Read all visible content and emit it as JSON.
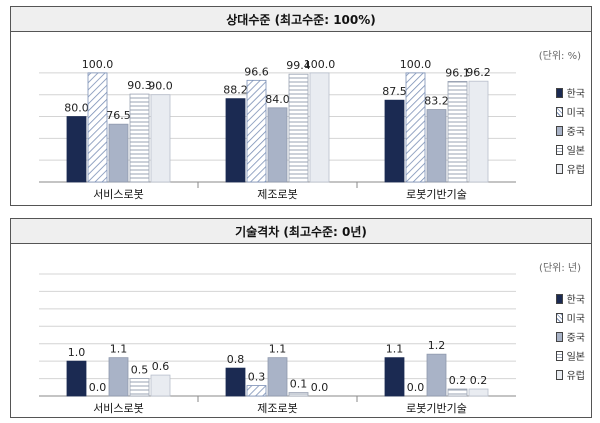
{
  "colors": {
    "korea": "#1b2a52",
    "usa_stripe": "#7a8fb5",
    "china": "#a9b3c7",
    "japan_line": "#9aa3b3",
    "europe": "#e9ecf1"
  },
  "chart_data": [
    {
      "type": "bar",
      "title": "상대수준 (최고수준: 100%)",
      "unit": "(단위: %)",
      "categories": [
        "서비스로봇",
        "제조로봇",
        "로봇기반기술"
      ],
      "series": [
        {
          "name": "한국",
          "values": [
            80.0,
            88.2,
            87.5
          ]
        },
        {
          "name": "미국",
          "values": [
            100.0,
            96.6,
            100.0
          ]
        },
        {
          "name": "중국",
          "values": [
            76.5,
            84.0,
            83.2
          ]
        },
        {
          "name": "일본",
          "values": [
            90.3,
            99.4,
            96.1
          ]
        },
        {
          "name": "유럽",
          "values": [
            90.0,
            100.0,
            96.2
          ]
        }
      ],
      "value_labels": [
        [
          "80.0",
          "100.0",
          "76.5",
          "90.3",
          "90.0"
        ],
        [
          "88.2",
          "96.6",
          "84.0",
          "99.4",
          "100.0"
        ],
        [
          "87.5",
          "100.0",
          "83.2",
          "96.1",
          "96.2"
        ]
      ],
      "ylim": [
        50,
        105
      ],
      "grid": true,
      "legend": "right"
    },
    {
      "type": "bar",
      "title": "기술격차 (최고수준: 0년)",
      "unit": "(단위: 년)",
      "categories": [
        "서비스로봇",
        "제조로봇",
        "로봇기반기술"
      ],
      "series": [
        {
          "name": "한국",
          "values": [
            1.0,
            0.8,
            1.1
          ]
        },
        {
          "name": "미국",
          "values": [
            0.0,
            0.3,
            0.0
          ]
        },
        {
          "name": "중국",
          "values": [
            1.1,
            1.1,
            1.2
          ]
        },
        {
          "name": "일본",
          "values": [
            0.5,
            0.1,
            0.2
          ]
        },
        {
          "name": "유럽",
          "values": [
            0.6,
            0.0,
            0.2
          ]
        }
      ],
      "value_labels": [
        [
          "1.0",
          "0.0",
          "1.1",
          "0.5",
          "0.6"
        ],
        [
          "0.8",
          "0.3",
          "1.1",
          "0.1",
          "0.0"
        ],
        [
          "1.1",
          "0.0",
          "1.2",
          "0.2",
          "0.2"
        ]
      ],
      "ylim": [
        0,
        3.5
      ],
      "grid": true,
      "legend": "right"
    }
  ]
}
